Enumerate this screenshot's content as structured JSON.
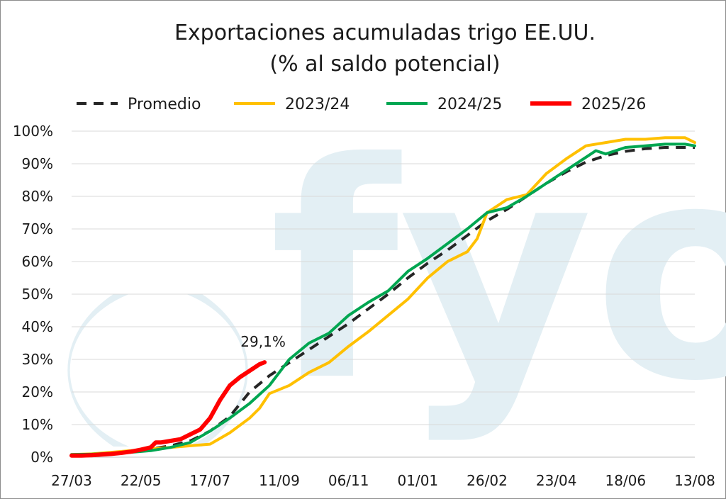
{
  "chart_data": {
    "type": "line",
    "title": [
      "Exportaciones acumuladas trigo EE.UU.",
      "(% al saldo potencial)"
    ],
    "xlabel": "",
    "ylabel": "",
    "x_ticks": [
      "27/03",
      "22/05",
      "17/07",
      "11/09",
      "06/11",
      "01/01",
      "26/02",
      "23/04",
      "18/06",
      "13/08"
    ],
    "y_ticks": [
      "0%",
      "10%",
      "20%",
      "30%",
      "40%",
      "50%",
      "60%",
      "70%",
      "80%",
      "90%",
      "100%"
    ],
    "ylim": [
      0,
      100
    ],
    "x_range_weeks": [
      0,
      63
    ],
    "grid": "horizontal",
    "legend_placement": "top",
    "watermark": "fyo",
    "annotation": {
      "text": "29,1%",
      "series": "2025/26"
    },
    "series": [
      {
        "name": "Promedio",
        "color": "#262626",
        "style": "dashed",
        "weeks": [
          0,
          2,
          4,
          6,
          8,
          10,
          12,
          14,
          16,
          18,
          20,
          22,
          24,
          26,
          28,
          30,
          32,
          34,
          36,
          38,
          40,
          42,
          44,
          46,
          48,
          50,
          52,
          54,
          56,
          58,
          60,
          62,
          63
        ],
        "values": [
          0.5,
          0.8,
          1.2,
          1.8,
          2.5,
          3.5,
          5.0,
          8.0,
          12.5,
          20.0,
          25.0,
          29.0,
          33.0,
          37.0,
          41.0,
          45.5,
          50.0,
          55.0,
          59.5,
          63.5,
          68.0,
          72.5,
          76.0,
          80.0,
          84.0,
          87.5,
          90.5,
          92.5,
          93.8,
          94.6,
          95.0,
          95.0,
          95.0
        ]
      },
      {
        "name": "2023/24",
        "color": "#FFC000",
        "style": "solid",
        "weeks": [
          0,
          2,
          4,
          6,
          8,
          10,
          12,
          14,
          16,
          18,
          19,
          20,
          22,
          24,
          26,
          28,
          30,
          32,
          34,
          36,
          38,
          40,
          41,
          42,
          44,
          46,
          48,
          50,
          52,
          54,
          56,
          58,
          60,
          62,
          63
        ],
        "values": [
          0.8,
          1.0,
          1.5,
          2.0,
          2.5,
          3.0,
          3.5,
          4.0,
          7.5,
          12.0,
          15.0,
          19.5,
          22.0,
          26.0,
          29.0,
          34.0,
          38.5,
          43.5,
          48.5,
          55.0,
          60.0,
          63.0,
          67.0,
          75.0,
          79.0,
          80.5,
          87.0,
          91.5,
          95.5,
          96.5,
          97.5,
          97.5,
          98.0,
          98.0,
          96.5
        ]
      },
      {
        "name": "2024/25",
        "color": "#00A651",
        "style": "solid",
        "weeks": [
          0,
          2,
          4,
          6,
          8,
          10,
          12,
          14,
          16,
          18,
          20,
          21,
          22,
          24,
          26,
          28,
          30,
          32,
          34,
          36,
          38,
          40,
          42,
          44,
          46,
          48,
          50,
          52,
          53,
          54,
          56,
          58,
          60,
          62,
          63
        ],
        "values": [
          0.8,
          0.9,
          1.2,
          1.5,
          2.0,
          3.0,
          4.5,
          8.0,
          12.0,
          16.5,
          22.0,
          26.0,
          30.0,
          35.0,
          38.0,
          43.5,
          47.5,
          51.0,
          57.0,
          61.0,
          65.5,
          70.0,
          75.0,
          76.5,
          80.0,
          84.0,
          88.0,
          92.0,
          94.0,
          93.0,
          95.0,
          95.5,
          96.0,
          96.0,
          95.5
        ]
      },
      {
        "name": "2025/26",
        "color": "#FF0000",
        "style": "solid",
        "weeks": [
          0,
          1,
          2,
          3,
          4,
          5,
          6,
          7,
          8,
          8.5,
          9,
          10,
          11,
          12,
          13,
          14,
          15,
          16,
          17,
          18,
          19,
          19.5
        ],
        "values": [
          0.5,
          0.5,
          0.6,
          0.8,
          1.0,
          1.3,
          1.7,
          2.3,
          3.0,
          4.5,
          4.5,
          5.0,
          5.5,
          7.0,
          8.5,
          12.0,
          17.5,
          22.0,
          24.5,
          26.5,
          28.5,
          29.1
        ]
      }
    ]
  }
}
